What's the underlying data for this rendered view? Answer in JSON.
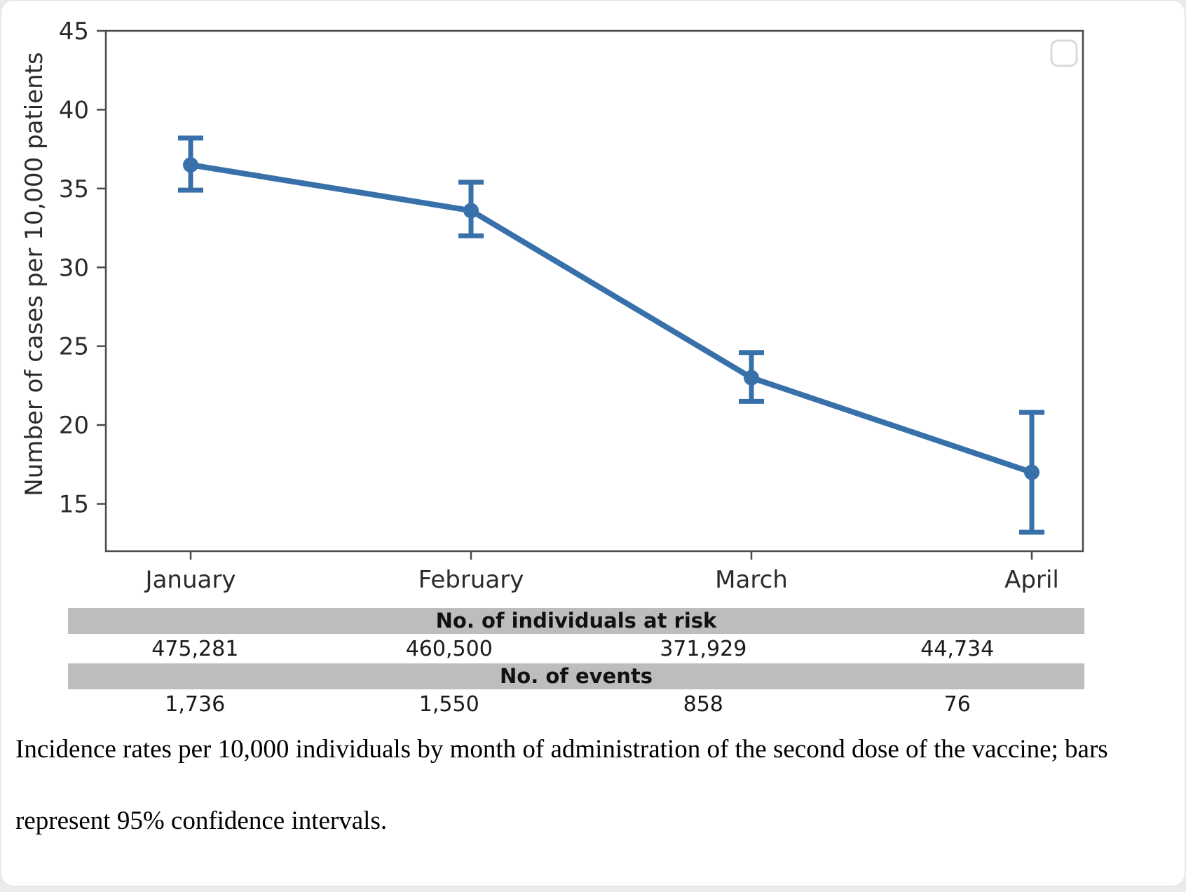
{
  "page": {
    "background_color": "#ebebeb",
    "card_color": "#ffffff"
  },
  "chart_data": {
    "type": "line",
    "title": "",
    "categories": [
      "January",
      "February",
      "March",
      "April"
    ],
    "series": [
      {
        "name": "Incidence rate with 95% CI error bars",
        "values": [
          36.5,
          33.6,
          23.0,
          17.0
        ],
        "ci_low": [
          34.9,
          32.0,
          21.5,
          13.2
        ],
        "ci_high": [
          38.2,
          35.4,
          24.6,
          20.8
        ]
      }
    ],
    "xlabel": "",
    "ylabel": "Number of cases per 10,000 patients",
    "yticks": [
      45,
      40,
      35,
      30,
      25,
      20,
      15
    ],
    "ylim": [
      12,
      45
    ],
    "grid": false,
    "legend": {
      "position": "top-right",
      "entries": []
    },
    "line_color": "#3871aa",
    "axis_color": "#4a4a4a",
    "tick_label_color": "#2b2b2b"
  },
  "risk_table": {
    "band_color": "#bdbdbd",
    "rows": [
      {
        "header": "No. of individuals at risk",
        "values": [
          "475,281",
          "460,500",
          "371,929",
          "44,734"
        ]
      },
      {
        "header": "No. of events",
        "values": [
          "1,736",
          "1,550",
          "858",
          "76"
        ]
      }
    ]
  },
  "caption": {
    "line1": "Incidence rates per 10,000 individuals by month of administration of the second dose of the vaccine; bars",
    "line2": "represent 95% confidence intervals."
  }
}
